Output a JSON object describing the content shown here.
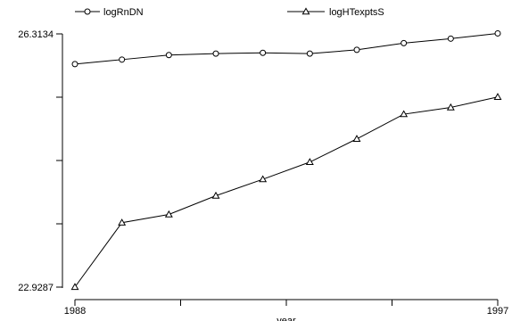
{
  "chart_data": {
    "type": "line",
    "xlabel": "year",
    "ylabel": "",
    "title": "",
    "x": [
      1988,
      1989,
      1990,
      1991,
      1992,
      1993,
      1994,
      1995,
      1996,
      1997
    ],
    "xlim": [
      1988,
      1997
    ],
    "ylim": [
      22.9287,
      26.3134
    ],
    "x_tick_labels": [
      "1988",
      "1997"
    ],
    "y_tick_labels": [
      "22.9287",
      "26.3134"
    ],
    "legend_position": "top",
    "series": [
      {
        "name": "logRnDN",
        "marker": "circle",
        "values": [
          25.91,
          25.97,
          26.03,
          26.05,
          26.06,
          26.05,
          26.1,
          26.19,
          26.25,
          26.32
        ]
      },
      {
        "name": "logHTexptsS",
        "marker": "triangle",
        "values": [
          22.93,
          23.79,
          23.9,
          24.15,
          24.37,
          24.6,
          24.91,
          25.24,
          25.33,
          25.47
        ]
      }
    ]
  }
}
